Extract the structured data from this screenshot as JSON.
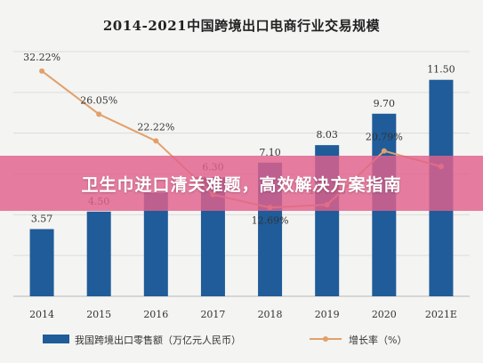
{
  "banner": {
    "text": "卫生巾进口清关难题，高效解决方案指南",
    "color": "#e2628c"
  },
  "chart_data": {
    "type": "bar",
    "title": "2014-2021中国跨境出口电商行业交易规模",
    "xlabel": "",
    "ylabel": "",
    "categories": [
      "2014",
      "2015",
      "2016",
      "2017",
      "2018",
      "2019",
      "2020",
      "2021E"
    ],
    "ylim": [
      0,
      13
    ],
    "y2lim": [
      0,
      35
    ],
    "grid": true,
    "legend_position": "bottom",
    "series": [
      {
        "name": "我国跨境出口零售额（万亿元人民币）",
        "type": "bar",
        "color": "#1f5c99",
        "values": [
          3.57,
          4.5,
          5.5,
          6.3,
          7.1,
          8.03,
          9.7,
          11.5
        ],
        "labels": [
          "3.57",
          "4.50",
          "",
          "6.30",
          "7.10",
          "8.03",
          "9.70",
          "11.50"
        ]
      },
      {
        "name": "增长率（%）",
        "type": "line",
        "axis": "right",
        "color": "#e2a06a",
        "values": [
          32.22,
          26.05,
          22.22,
          14.54,
          12.69,
          13.09,
          20.79,
          18.56
        ],
        "labels": [
          "32.22%",
          "26.05%",
          "22.22%",
          "14.54%",
          "12.69%",
          "13.09%",
          "20.79%",
          ""
        ]
      }
    ]
  }
}
